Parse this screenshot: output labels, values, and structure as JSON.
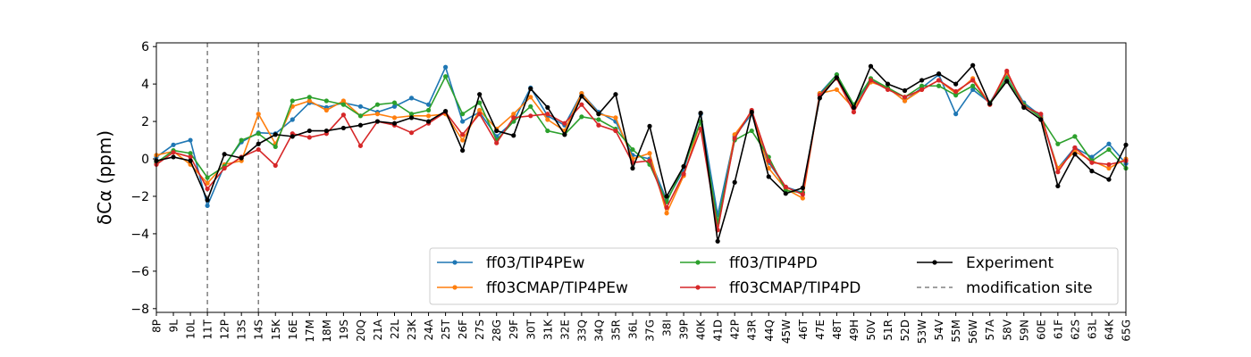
{
  "chart_data": {
    "type": "line",
    "ylabel": "δCα (ppm)",
    "xlabel": "",
    "title": "",
    "ylim": [
      -8.2,
      6.2
    ],
    "yticks": [
      -8,
      -6,
      -4,
      -2,
      0,
      2,
      4,
      6
    ],
    "grid": false,
    "legend_position": "lower-right",
    "categories": [
      "8P",
      "9L",
      "10L",
      "11T",
      "12P",
      "13S",
      "14S",
      "15K",
      "16E",
      "17M",
      "18M",
      "19S",
      "20Q",
      "21A",
      "22L",
      "23K",
      "24A",
      "25T",
      "26F",
      "27S",
      "28G",
      "29F",
      "30T",
      "31K",
      "32E",
      "33Q",
      "34Q",
      "35R",
      "36L",
      "37G",
      "38I",
      "39P",
      "40K",
      "41D",
      "42P",
      "43R",
      "44Q",
      "45W",
      "46T",
      "47E",
      "48T",
      "49H",
      "50V",
      "51R",
      "52D",
      "53W",
      "54V",
      "55M",
      "56W",
      "57A",
      "58V",
      "59N",
      "60E",
      "61F",
      "62S",
      "63L",
      "64K",
      "65G"
    ],
    "modification_sites": [
      "11T",
      "14S"
    ],
    "series": [
      {
        "name": "ff03/TIP4PEw",
        "color": "#1f77b4",
        "values": [
          0.1,
          0.75,
          1.0,
          -2.5,
          -0.35,
          0.9,
          1.4,
          1.35,
          2.1,
          3.0,
          2.75,
          3.0,
          2.8,
          2.5,
          2.8,
          3.25,
          2.9,
          4.9,
          2.0,
          2.5,
          1.2,
          2.0,
          3.8,
          2.3,
          1.8,
          3.5,
          2.5,
          2.0,
          0.2,
          0.0,
          -2.2,
          -0.6,
          2.4,
          -3.0,
          1.2,
          2.4,
          -0.2,
          -1.5,
          -1.8,
          3.5,
          4.5,
          2.8,
          4.2,
          3.8,
          3.1,
          3.8,
          4.5,
          2.4,
          3.7,
          3.0,
          4.5,
          3.0,
          2.3,
          -0.5,
          0.6,
          0.1,
          0.8,
          -0.25
        ]
      },
      {
        "name": "ff03CMAP/TIP4PEw",
        "color": "#ff7f0e",
        "values": [
          0.2,
          0.4,
          -0.3,
          -1.3,
          -0.3,
          -0.1,
          2.4,
          0.8,
          2.8,
          3.1,
          2.6,
          3.1,
          2.3,
          2.4,
          2.2,
          2.3,
          2.3,
          2.4,
          1.0,
          2.6,
          1.6,
          2.4,
          3.3,
          2.1,
          1.5,
          3.5,
          2.4,
          2.2,
          0.0,
          0.3,
          -2.9,
          -0.9,
          2.0,
          -3.8,
          1.3,
          2.5,
          -0.5,
          -1.6,
          -2.1,
          3.5,
          3.7,
          2.7,
          4.1,
          3.8,
          3.1,
          3.7,
          4.2,
          3.5,
          4.3,
          2.9,
          4.6,
          2.9,
          2.2,
          -0.5,
          0.4,
          -0.1,
          -0.5,
          0.0
        ]
      },
      {
        "name": "ff03/TIP4PD",
        "color": "#2ca02c",
        "values": [
          -0.2,
          0.45,
          0.3,
          -1.0,
          -0.4,
          1.0,
          1.35,
          0.65,
          3.1,
          3.3,
          3.1,
          2.9,
          2.3,
          2.9,
          3.0,
          2.4,
          2.6,
          4.4,
          2.4,
          3.0,
          1.0,
          2.0,
          2.8,
          1.5,
          1.3,
          2.25,
          2.1,
          1.6,
          0.5,
          -0.3,
          -2.3,
          -0.4,
          2.0,
          -3.4,
          1.0,
          1.5,
          0.1,
          -1.7,
          -1.8,
          3.4,
          4.5,
          2.9,
          4.3,
          3.8,
          3.3,
          3.9,
          3.9,
          3.4,
          3.9,
          3.0,
          4.3,
          2.9,
          2.2,
          0.8,
          1.2,
          -0.1,
          0.5,
          -0.5
        ]
      },
      {
        "name": "ff03CMAP/TIP4PD",
        "color": "#d62728",
        "values": [
          -0.3,
          0.35,
          0.1,
          -1.6,
          -0.5,
          0.1,
          0.5,
          -0.35,
          1.35,
          1.15,
          1.35,
          2.35,
          0.7,
          2.0,
          1.8,
          1.4,
          1.9,
          2.5,
          1.3,
          2.4,
          0.85,
          2.2,
          2.3,
          2.4,
          1.9,
          2.9,
          1.8,
          1.5,
          -0.2,
          -0.1,
          -2.6,
          -0.8,
          1.6,
          -3.8,
          1.1,
          2.6,
          -0.1,
          -1.5,
          -1.9,
          3.4,
          4.3,
          2.5,
          4.2,
          3.7,
          3.3,
          3.7,
          4.2,
          3.6,
          4.2,
          2.9,
          4.7,
          2.8,
          2.4,
          -0.7,
          0.6,
          -0.2,
          -0.3,
          -0.1
        ]
      },
      {
        "name": "Experiment",
        "color": "#000000",
        "values": [
          -0.1,
          0.1,
          -0.1,
          -2.2,
          0.25,
          0.05,
          0.8,
          1.3,
          1.2,
          1.5,
          1.5,
          1.65,
          1.8,
          2.0,
          1.9,
          2.2,
          2.0,
          2.55,
          0.45,
          3.45,
          1.5,
          1.25,
          3.75,
          2.75,
          1.3,
          3.35,
          2.4,
          3.45,
          -0.5,
          1.75,
          -2.0,
          -0.4,
          2.45,
          -4.4,
          -1.25,
          2.5,
          -0.95,
          -1.85,
          -1.55,
          3.25,
          4.35,
          2.75,
          4.95,
          4.0,
          3.65,
          4.2,
          4.55,
          4.0,
          5.0,
          2.95,
          4.15,
          2.75,
          2.1,
          -1.45,
          0.25,
          -0.65,
          -1.1,
          0.75
        ]
      }
    ],
    "legend": [
      {
        "label": "ff03/TIP4PEw",
        "color": "#1f77b4",
        "style": "line-marker"
      },
      {
        "label": "ff03CMAP/TIP4PEw",
        "color": "#ff7f0e",
        "style": "line-marker"
      },
      {
        "label": "ff03/TIP4PD",
        "color": "#2ca02c",
        "style": "line-marker"
      },
      {
        "label": "ff03CMAP/TIP4PD",
        "color": "#d62728",
        "style": "line-marker"
      },
      {
        "label": "Experiment",
        "color": "#000000",
        "style": "line-marker"
      },
      {
        "label": "modification site",
        "color": "#808080",
        "style": "dashed"
      }
    ]
  }
}
